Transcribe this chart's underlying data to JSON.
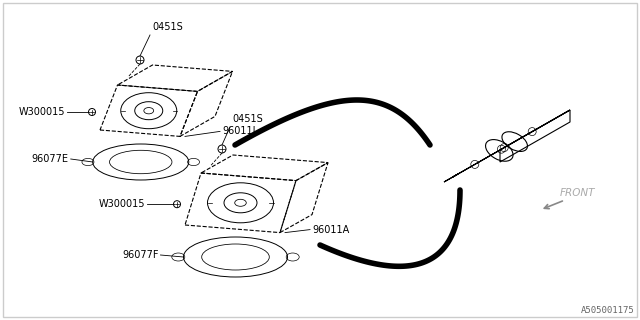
{
  "bg_color": "#ffffff",
  "line_color": "#000000",
  "fig_width": 6.4,
  "fig_height": 3.2,
  "dpi": 100,
  "part_number": "A505001175",
  "labels": {
    "0451S_top": "0451S",
    "W300015_top": "W300015",
    "96011I": "96011I",
    "96077E": "96077E",
    "0451S_bot": "0451S",
    "W300015_bot": "W300015",
    "96011A": "96011A",
    "96077F": "96077F",
    "front": "FRONT"
  }
}
